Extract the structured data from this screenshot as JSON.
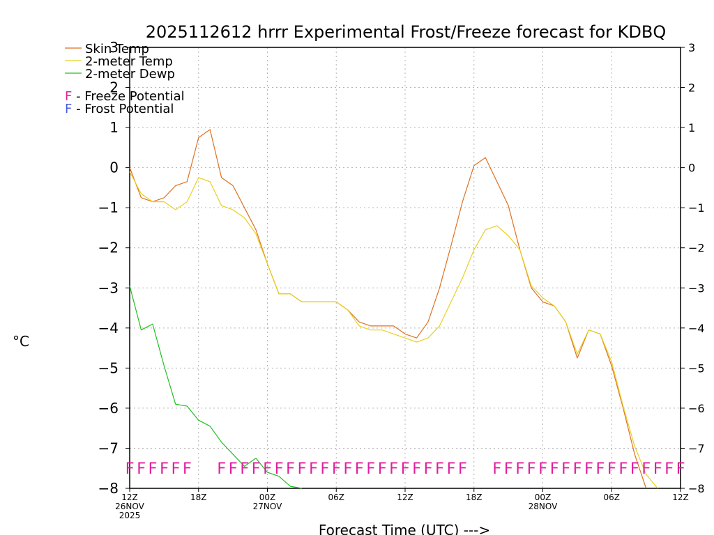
{
  "chart_data": {
    "type": "line",
    "title": "2025112612 hrrr Experimental Frost/Freeze forecast for KDBQ",
    "ylabel": "°C",
    "xlabel": "Forecast Time (UTC) --->",
    "ylim": [
      -8,
      3
    ],
    "yticks": [
      3,
      2,
      1,
      0,
      -1,
      -2,
      -3,
      -4,
      -5,
      -6,
      -7,
      -8
    ],
    "xlim": [
      0,
      48
    ],
    "xticks": [
      {
        "h": 0,
        "label": "12Z",
        "sub": [
          "26NOV",
          "2025"
        ]
      },
      {
        "h": 6,
        "label": "18Z",
        "sub": []
      },
      {
        "h": 12,
        "label": "00Z",
        "sub": [
          "27NOV"
        ]
      },
      {
        "h": 18,
        "label": "06Z",
        "sub": []
      },
      {
        "h": 24,
        "label": "12Z",
        "sub": []
      },
      {
        "h": 30,
        "label": "18Z",
        "sub": []
      },
      {
        "h": 36,
        "label": "00Z",
        "sub": [
          "28NOV"
        ]
      },
      {
        "h": 42,
        "label": "06Z",
        "sub": []
      },
      {
        "h": 48,
        "label": "12Z",
        "sub": []
      }
    ],
    "legend": [
      {
        "name": "Skin Temp",
        "color": "#e07020"
      },
      {
        "name": "2-meter Temp",
        "color": "#e8d020"
      },
      {
        "name": "2-meter Dewp",
        "color": "#20c020"
      }
    ],
    "potential_legend": [
      {
        "letter": "F",
        "text": " - Freeze Potential",
        "color": "#e0209e"
      },
      {
        "letter": "F",
        "text": " - Frost Potential",
        "color": "#4a5ae0"
      }
    ],
    "series": [
      {
        "name": "Skin Temp",
        "color": "#e07020",
        "x": [
          0,
          1,
          2,
          3,
          4,
          5,
          6,
          7,
          8,
          9,
          10,
          11,
          12,
          13,
          14,
          15,
          16,
          17,
          18,
          19,
          20,
          21,
          22,
          23,
          24,
          25,
          26,
          27,
          28,
          29,
          30,
          31,
          32,
          33,
          34,
          35,
          36,
          37,
          38,
          39,
          40,
          41,
          42,
          43,
          44,
          45
        ],
        "values": [
          0.0,
          -0.75,
          -0.85,
          -0.75,
          -0.45,
          -0.35,
          0.75,
          0.95,
          -0.25,
          -0.45,
          -1.0,
          -1.55,
          -2.4,
          -3.15,
          -3.15,
          -3.35,
          -3.35,
          -3.35,
          -3.35,
          -3.55,
          -3.85,
          -3.95,
          -3.95,
          -3.95,
          -4.15,
          -4.25,
          -3.85,
          -3.0,
          -1.95,
          -0.85,
          0.05,
          0.25,
          -0.35,
          -0.95,
          -2.05,
          -3.0,
          -3.35,
          -3.45,
          -3.85,
          -4.75,
          -4.05,
          -4.15,
          -4.95,
          -6.0,
          -7.15,
          -8.0
        ]
      },
      {
        "name": "2-meter Temp",
        "color": "#e8d020",
        "x": [
          0,
          1,
          2,
          3,
          4,
          5,
          6,
          7,
          8,
          9,
          10,
          11,
          12,
          13,
          14,
          15,
          16,
          17,
          18,
          19,
          20,
          21,
          22,
          23,
          24,
          25,
          26,
          27,
          28,
          29,
          30,
          31,
          32,
          33,
          34,
          35,
          36,
          37,
          38,
          39,
          40,
          41,
          42,
          43,
          44,
          45,
          46
        ],
        "values": [
          -0.1,
          -0.65,
          -0.85,
          -0.85,
          -1.05,
          -0.85,
          -0.25,
          -0.35,
          -0.95,
          -1.05,
          -1.25,
          -1.65,
          -2.4,
          -3.15,
          -3.15,
          -3.35,
          -3.35,
          -3.35,
          -3.35,
          -3.55,
          -3.95,
          -4.05,
          -4.05,
          -4.15,
          -4.25,
          -4.35,
          -4.25,
          -3.95,
          -3.35,
          -2.75,
          -2.05,
          -1.55,
          -1.45,
          -1.7,
          -2.05,
          -2.95,
          -3.25,
          -3.45,
          -3.85,
          -4.65,
          -4.05,
          -4.15,
          -4.85,
          -5.95,
          -6.95,
          -7.65,
          -8.0
        ]
      },
      {
        "name": "2-meter Dewp",
        "color": "#20c020",
        "x": [
          0,
          1,
          2,
          3,
          4,
          5,
          6,
          7,
          8,
          9,
          10,
          11,
          12,
          13,
          14,
          15
        ],
        "values": [
          -2.95,
          -4.05,
          -3.9,
          -4.95,
          -5.9,
          -5.95,
          -6.3,
          -6.45,
          -6.85,
          -7.15,
          -7.45,
          -7.25,
          -7.6,
          -7.7,
          -7.95,
          -8.0
        ]
      }
    ],
    "freeze_marks": {
      "letter": "F",
      "color": "#e0209e",
      "y": -7.5,
      "hours": [
        0,
        1,
        2,
        3,
        4,
        5,
        8,
        9,
        10,
        11,
        12,
        13,
        14,
        15,
        16,
        17,
        18,
        19,
        20,
        21,
        22,
        23,
        24,
        25,
        26,
        27,
        28,
        29,
        32,
        33,
        34,
        35,
        36,
        37,
        38,
        39,
        40,
        41,
        42,
        43,
        44,
        45,
        46,
        47,
        48
      ]
    }
  }
}
